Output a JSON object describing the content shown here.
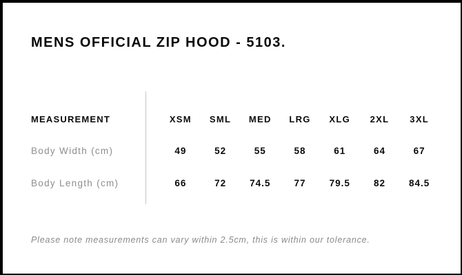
{
  "title": "MENS OFFICIAL ZIP HOOD - 5103.",
  "table": {
    "header_label": "MEASUREMENT",
    "sizes": [
      "XSM",
      "SML",
      "MED",
      "LRG",
      "XLG",
      "2XL",
      "3XL"
    ],
    "rows": [
      {
        "label": "Body Width (cm)",
        "values": [
          "49",
          "52",
          "55",
          "58",
          "61",
          "64",
          "67"
        ]
      },
      {
        "label": "Body Length (cm)",
        "values": [
          "66",
          "72",
          "74.5",
          "77",
          "79.5",
          "82",
          "84.5"
        ]
      }
    ]
  },
  "note": "Please note measurements can vary within 2.5cm, this is within our tolerance.",
  "colors": {
    "border": "#000000",
    "heading_text": "#070707",
    "value_text": "#0a0a0a",
    "muted_text": "#8e8e8e",
    "divider": "#c5c5c5",
    "background": "#ffffff"
  },
  "chart_data": {
    "type": "table",
    "title": "MENS OFFICIAL ZIP HOOD - 5103.",
    "columns": [
      "MEASUREMENT",
      "XSM",
      "SML",
      "MED",
      "LRG",
      "XLG",
      "2XL",
      "3XL"
    ],
    "rows": [
      [
        "Body Width (cm)",
        49,
        52,
        55,
        58,
        61,
        64,
        67
      ],
      [
        "Body Length (cm)",
        66,
        72,
        74.5,
        77,
        79.5,
        82,
        84.5
      ]
    ],
    "note": "Please note measurements can vary within 2.5cm, this is within our tolerance."
  }
}
